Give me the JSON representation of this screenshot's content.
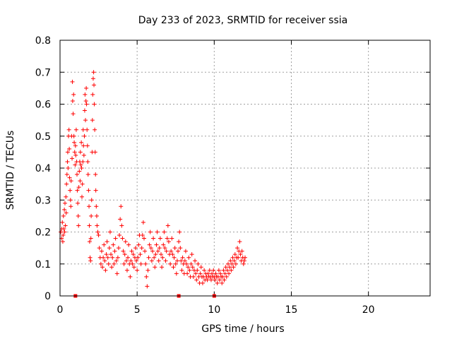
{
  "chart_data": {
    "type": "scatter",
    "title": "Day 233 of 2023, SRMTID for receiver ssia",
    "xlabel": "GPS time / hours",
    "ylabel": "SRMTID / TECUs",
    "xlim": [
      0,
      24
    ],
    "ylim": [
      0,
      0.8
    ],
    "x_ticks": [
      0,
      5,
      10,
      15,
      20
    ],
    "x_tick_labels": [
      "0",
      "5",
      "10",
      "15",
      "20"
    ],
    "y_ticks": [
      0,
      0.1,
      0.2,
      0.3,
      0.4,
      0.5,
      0.6,
      0.7,
      0.8
    ],
    "y_tick_labels": [
      "0",
      "0.1",
      "0.2",
      "0.3",
      "0.4",
      "0.5",
      "0.6",
      "0.7",
      "0.8"
    ],
    "grid": true,
    "marker": "plus",
    "color": "#ff0000",
    "series": [
      {
        "name": "SRMTID",
        "points": [
          [
            0.05,
            0.2
          ],
          [
            0.1,
            0.18
          ],
          [
            0.12,
            0.21
          ],
          [
            0.15,
            0.23
          ],
          [
            0.18,
            0.17
          ],
          [
            0.2,
            0.19
          ],
          [
            0.22,
            0.25
          ],
          [
            0.25,
            0.21
          ],
          [
            0.28,
            0.27
          ],
          [
            0.3,
            0.2
          ],
          [
            0.32,
            0.29
          ],
          [
            0.35,
            0.22
          ],
          [
            0.38,
            0.31
          ],
          [
            0.4,
            0.26
          ],
          [
            0.42,
            0.35
          ],
          [
            0.45,
            0.38
          ],
          [
            0.48,
            0.42
          ],
          [
            0.5,
            0.45
          ],
          [
            0.52,
            0.4
          ],
          [
            0.55,
            0.5
          ],
          [
            0.58,
            0.52
          ],
          [
            0.6,
            0.46
          ],
          [
            0.62,
            0.37
          ],
          [
            0.65,
            0.33
          ],
          [
            0.68,
            0.3
          ],
          [
            0.7,
            0.28
          ],
          [
            0.72,
            0.36
          ],
          [
            0.75,
            0.5
          ],
          [
            0.78,
            0.43
          ],
          [
            0.8,
            0.67
          ],
          [
            0.82,
            0.61
          ],
          [
            0.85,
            0.57
          ],
          [
            0.88,
            0.63
          ],
          [
            0.9,
            0.5
          ],
          [
            0.92,
            0.48
          ],
          [
            0.95,
            0.45
          ],
          [
            0.98,
            0.41
          ],
          [
            1.0,
            0.47
          ],
          [
            1.02,
            0.44
          ],
          [
            1.05,
            0.52
          ],
          [
            1.08,
            0.42
          ],
          [
            1.1,
            0.38
          ],
          [
            1.12,
            0.33
          ],
          [
            1.15,
            0.29
          ],
          [
            1.18,
            0.25
          ],
          [
            1.2,
            0.22
          ],
          [
            1.22,
            0.34
          ],
          [
            1.25,
            0.39
          ],
          [
            1.28,
            0.42
          ],
          [
            1.3,
            0.36
          ],
          [
            1.32,
            0.45
          ],
          [
            1.35,
            0.41
          ],
          [
            1.38,
            0.48
          ],
          [
            1.4,
            0.4
          ],
          [
            1.42,
            0.31
          ],
          [
            1.45,
            0.35
          ],
          [
            1.48,
            0.42
          ],
          [
            1.5,
            0.52
          ],
          [
            1.52,
            0.47
          ],
          [
            1.55,
            0.44
          ],
          [
            1.58,
            0.5
          ],
          [
            1.6,
            0.58
          ],
          [
            1.62,
            0.63
          ],
          [
            1.65,
            0.55
          ],
          [
            1.68,
            0.61
          ],
          [
            1.7,
            0.65
          ],
          [
            1.72,
            0.6
          ],
          [
            1.75,
            0.52
          ],
          [
            1.78,
            0.47
          ],
          [
            1.8,
            0.42
          ],
          [
            1.82,
            0.38
          ],
          [
            1.85,
            0.33
          ],
          [
            1.88,
            0.28
          ],
          [
            1.9,
            0.22
          ],
          [
            1.92,
            0.17
          ],
          [
            1.95,
            0.12
          ],
          [
            1.98,
            0.11
          ],
          [
            2.0,
            0.18
          ],
          [
            2.02,
            0.25
          ],
          [
            2.05,
            0.3
          ],
          [
            2.08,
            0.45
          ],
          [
            2.1,
            0.55
          ],
          [
            2.12,
            0.63
          ],
          [
            2.15,
            0.68
          ],
          [
            2.18,
            0.7
          ],
          [
            2.2,
            0.66
          ],
          [
            2.22,
            0.6
          ],
          [
            2.25,
            0.52
          ],
          [
            2.28,
            0.45
          ],
          [
            2.3,
            0.38
          ],
          [
            2.32,
            0.33
          ],
          [
            2.35,
            0.28
          ],
          [
            2.38,
            0.25
          ],
          [
            2.4,
            0.22
          ],
          [
            2.45,
            0.2
          ],
          [
            2.5,
            0.19
          ],
          [
            2.55,
            0.15
          ],
          [
            2.6,
            0.12
          ],
          [
            2.65,
            0.1
          ],
          [
            2.7,
            0.14
          ],
          [
            2.75,
            0.09
          ],
          [
            2.8,
            0.12
          ],
          [
            2.85,
            0.16
          ],
          [
            2.9,
            0.11
          ],
          [
            2.95,
            0.08
          ],
          [
            3.0,
            0.13
          ],
          [
            3.05,
            0.17
          ],
          [
            3.1,
            0.12
          ],
          [
            3.15,
            0.1
          ],
          [
            3.2,
            0.15
          ],
          [
            3.25,
            0.2
          ],
          [
            3.3,
            0.13
          ],
          [
            3.35,
            0.09
          ],
          [
            3.4,
            0.12
          ],
          [
            3.45,
            0.16
          ],
          [
            3.5,
            0.1
          ],
          [
            3.55,
            0.14
          ],
          [
            3.6,
            0.18
          ],
          [
            3.65,
            0.11
          ],
          [
            3.7,
            0.07
          ],
          [
            3.75,
            0.12
          ],
          [
            3.8,
            0.15
          ],
          [
            3.85,
            0.19
          ],
          [
            3.9,
            0.24
          ],
          [
            3.95,
            0.28
          ],
          [
            4.0,
            0.22
          ],
          [
            4.05,
            0.18
          ],
          [
            4.1,
            0.14
          ],
          [
            4.15,
            0.1
          ],
          [
            4.2,
            0.13
          ],
          [
            4.25,
            0.17
          ],
          [
            4.3,
            0.11
          ],
          [
            4.35,
            0.08
          ],
          [
            4.4,
            0.12
          ],
          [
            4.45,
            0.16
          ],
          [
            4.5,
            0.1
          ],
          [
            4.55,
            0.06
          ],
          [
            4.6,
            0.11
          ],
          [
            4.65,
            0.14
          ],
          [
            4.7,
            0.1
          ],
          [
            4.75,
            0.13
          ],
          [
            4.8,
            0.09
          ],
          [
            4.85,
            0.12
          ],
          [
            4.9,
            0.15
          ],
          [
            4.95,
            0.11
          ],
          [
            5.0,
            0.08
          ],
          [
            5.05,
            0.12
          ],
          [
            5.1,
            0.16
          ],
          [
            5.15,
            0.19
          ],
          [
            5.2,
            0.13
          ],
          [
            5.25,
            0.1
          ],
          [
            5.3,
            0.15
          ],
          [
            5.35,
            0.19
          ],
          [
            5.4,
            0.23
          ],
          [
            5.45,
            0.18
          ],
          [
            5.5,
            0.14
          ],
          [
            5.55,
            0.1
          ],
          [
            5.6,
            0.06
          ],
          [
            5.65,
            0.03
          ],
          [
            5.7,
            0.08
          ],
          [
            5.75,
            0.12
          ],
          [
            5.8,
            0.16
          ],
          [
            5.85,
            0.2
          ],
          [
            5.9,
            0.15
          ],
          [
            5.95,
            0.11
          ],
          [
            6.0,
            0.14
          ],
          [
            6.05,
            0.18
          ],
          [
            6.1,
            0.12
          ],
          [
            6.15,
            0.09
          ],
          [
            6.2,
            0.13
          ],
          [
            6.25,
            0.16
          ],
          [
            6.3,
            0.2
          ],
          [
            6.35,
            0.14
          ],
          [
            6.4,
            0.11
          ],
          [
            6.45,
            0.15
          ],
          [
            6.5,
            0.18
          ],
          [
            6.55,
            0.13
          ],
          [
            6.6,
            0.09
          ],
          [
            6.65,
            0.12
          ],
          [
            6.7,
            0.16
          ],
          [
            6.75,
            0.2
          ],
          [
            6.8,
            0.15
          ],
          [
            6.85,
            0.11
          ],
          [
            6.9,
            0.14
          ],
          [
            6.95,
            0.18
          ],
          [
            7.0,
            0.22
          ],
          [
            7.05,
            0.17
          ],
          [
            7.1,
            0.13
          ],
          [
            7.15,
            0.1
          ],
          [
            7.2,
            0.14
          ],
          [
            7.25,
            0.18
          ],
          [
            7.3,
            0.13
          ],
          [
            7.35,
            0.09
          ],
          [
            7.4,
            0.12
          ],
          [
            7.45,
            0.15
          ],
          [
            7.5,
            0.1
          ],
          [
            7.55,
            0.07
          ],
          [
            7.6,
            0.11
          ],
          [
            7.65,
            0.14
          ],
          [
            7.7,
            0.17
          ],
          [
            7.75,
            0.2
          ],
          [
            7.8,
            0.15
          ],
          [
            7.85,
            0.11
          ],
          [
            7.9,
            0.08
          ],
          [
            7.95,
            0.12
          ],
          [
            8.0,
            0.1
          ],
          [
            8.05,
            0.07
          ],
          [
            8.1,
            0.11
          ],
          [
            8.15,
            0.14
          ],
          [
            8.2,
            0.1
          ],
          [
            8.25,
            0.07
          ],
          [
            8.3,
            0.09
          ],
          [
            8.35,
            0.12
          ],
          [
            8.4,
            0.08
          ],
          [
            8.45,
            0.06
          ],
          [
            8.5,
            0.1
          ],
          [
            8.55,
            0.13
          ],
          [
            8.6,
            0.09
          ],
          [
            8.65,
            0.06
          ],
          [
            8.7,
            0.08
          ],
          [
            8.75,
            0.11
          ],
          [
            8.8,
            0.07
          ],
          [
            8.85,
            0.05
          ],
          [
            8.9,
            0.08
          ],
          [
            8.95,
            0.1
          ],
          [
            9.0,
            0.06
          ],
          [
            9.05,
            0.04
          ],
          [
            9.1,
            0.07
          ],
          [
            9.15,
            0.09
          ],
          [
            9.2,
            0.06
          ],
          [
            9.25,
            0.04
          ],
          [
            9.3,
            0.06
          ],
          [
            9.35,
            0.08
          ],
          [
            9.4,
            0.05
          ],
          [
            9.45,
            0.07
          ],
          [
            9.5,
            0.06
          ],
          [
            9.55,
            0.05
          ],
          [
            9.6,
            0.07
          ],
          [
            9.65,
            0.06
          ],
          [
            9.7,
            0.08
          ],
          [
            9.75,
            0.06
          ],
          [
            9.8,
            0.05
          ],
          [
            9.85,
            0.07
          ],
          [
            9.9,
            0.06
          ],
          [
            9.95,
            0.08
          ],
          [
            10.0,
            0.06
          ],
          [
            10.05,
            0.05
          ],
          [
            10.1,
            0.07
          ],
          [
            10.15,
            0.06
          ],
          [
            10.2,
            0.04
          ],
          [
            10.25,
            0.06
          ],
          [
            10.3,
            0.08
          ],
          [
            10.35,
            0.05
          ],
          [
            10.4,
            0.07
          ],
          [
            10.45,
            0.06
          ],
          [
            10.5,
            0.04
          ],
          [
            10.55,
            0.06
          ],
          [
            10.6,
            0.08
          ],
          [
            10.65,
            0.05
          ],
          [
            10.7,
            0.07
          ],
          [
            10.75,
            0.09
          ],
          [
            10.8,
            0.06
          ],
          [
            10.85,
            0.08
          ],
          [
            10.9,
            0.1
          ],
          [
            10.95,
            0.07
          ],
          [
            11.0,
            0.09
          ],
          [
            11.05,
            0.11
          ],
          [
            11.1,
            0.08
          ],
          [
            11.15,
            0.1
          ],
          [
            11.2,
            0.12
          ],
          [
            11.25,
            0.09
          ],
          [
            11.3,
            0.11
          ],
          [
            11.35,
            0.13
          ],
          [
            11.4,
            0.1
          ],
          [
            11.45,
            0.12
          ],
          [
            11.5,
            0.15
          ],
          [
            11.55,
            0.12
          ],
          [
            11.6,
            0.14
          ],
          [
            11.65,
            0.17
          ],
          [
            11.7,
            0.13
          ],
          [
            11.75,
            0.11
          ],
          [
            11.8,
            0.14
          ],
          [
            11.85,
            0.12
          ],
          [
            11.9,
            0.1
          ],
          [
            11.95,
            0.11
          ],
          [
            12.0,
            0.12
          ]
        ]
      }
    ],
    "bottom_markers": [
      1.0,
      7.7,
      10.0
    ]
  }
}
